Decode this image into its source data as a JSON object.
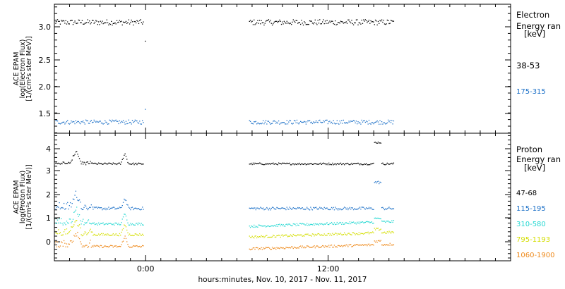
{
  "chart_data": [
    {
      "type": "scatter",
      "ylabel_lines": [
        "ACE EPAM",
        "log(Electron Flux)",
        "[1/(cm²s ster MeV)]"
      ],
      "yticks": [
        "3.0",
        "2.5",
        "2.0",
        "1.5"
      ],
      "ylim": [
        1.2,
        3.32
      ],
      "x_gaps": [
        [
          -0.2,
          6.8
        ],
        [
          16.3,
          24
        ]
      ],
      "legend_title": [
        "Electron",
        "Energy ran",
        "[keV]"
      ],
      "series": [
        {
          "name": "38-53",
          "color": "#000000",
          "level": 3.03,
          "jitter": 0.045,
          "tail_end": 2.72
        },
        {
          "name": "175-315",
          "color": "#1f72c8",
          "level": 1.39,
          "jitter": 0.035,
          "tail_end": 1.6
        }
      ]
    },
    {
      "type": "scatter",
      "ylabel_lines": [
        "ACE EPAM",
        "log(Proton Flux)",
        "[1/(cm²s ster MeV)]"
      ],
      "yticks": [
        "4",
        "3",
        "2",
        "1",
        "0"
      ],
      "ylim": [
        -0.62,
        4.75
      ],
      "x_gaps": [
        [
          -0.2,
          6.8
        ],
        [
          16.3,
          24
        ]
      ],
      "legend_title": [
        "Proton",
        "Energy ran",
        "[keV]"
      ],
      "series": [
        {
          "name": "47-68",
          "color": "#000000",
          "level": 3.48,
          "jitter": 0.04
        },
        {
          "name": "115-195",
          "color": "#1f72c8",
          "level": 1.6,
          "jitter": 0.06
        },
        {
          "name": "310-580",
          "color": "#25d8d2",
          "level": 0.95,
          "jitter": 0.05
        },
        {
          "name": "795-1193",
          "color": "#d4de00",
          "level": 0.5,
          "jitter": 0.05
        },
        {
          "name": "1060-1900",
          "color": "#ee8a1c",
          "level": 0.0,
          "jitter": 0.05
        }
      ]
    }
  ],
  "x_axis": {
    "range_hours": [
      -6,
      24
    ],
    "major_ticks": [
      {
        "hour": 0,
        "label": "0:00"
      },
      {
        "hour": 12,
        "label": "12:00"
      }
    ],
    "title": "hours:minutes, Nov. 10, 2017 - Nov. 11, 2017"
  }
}
